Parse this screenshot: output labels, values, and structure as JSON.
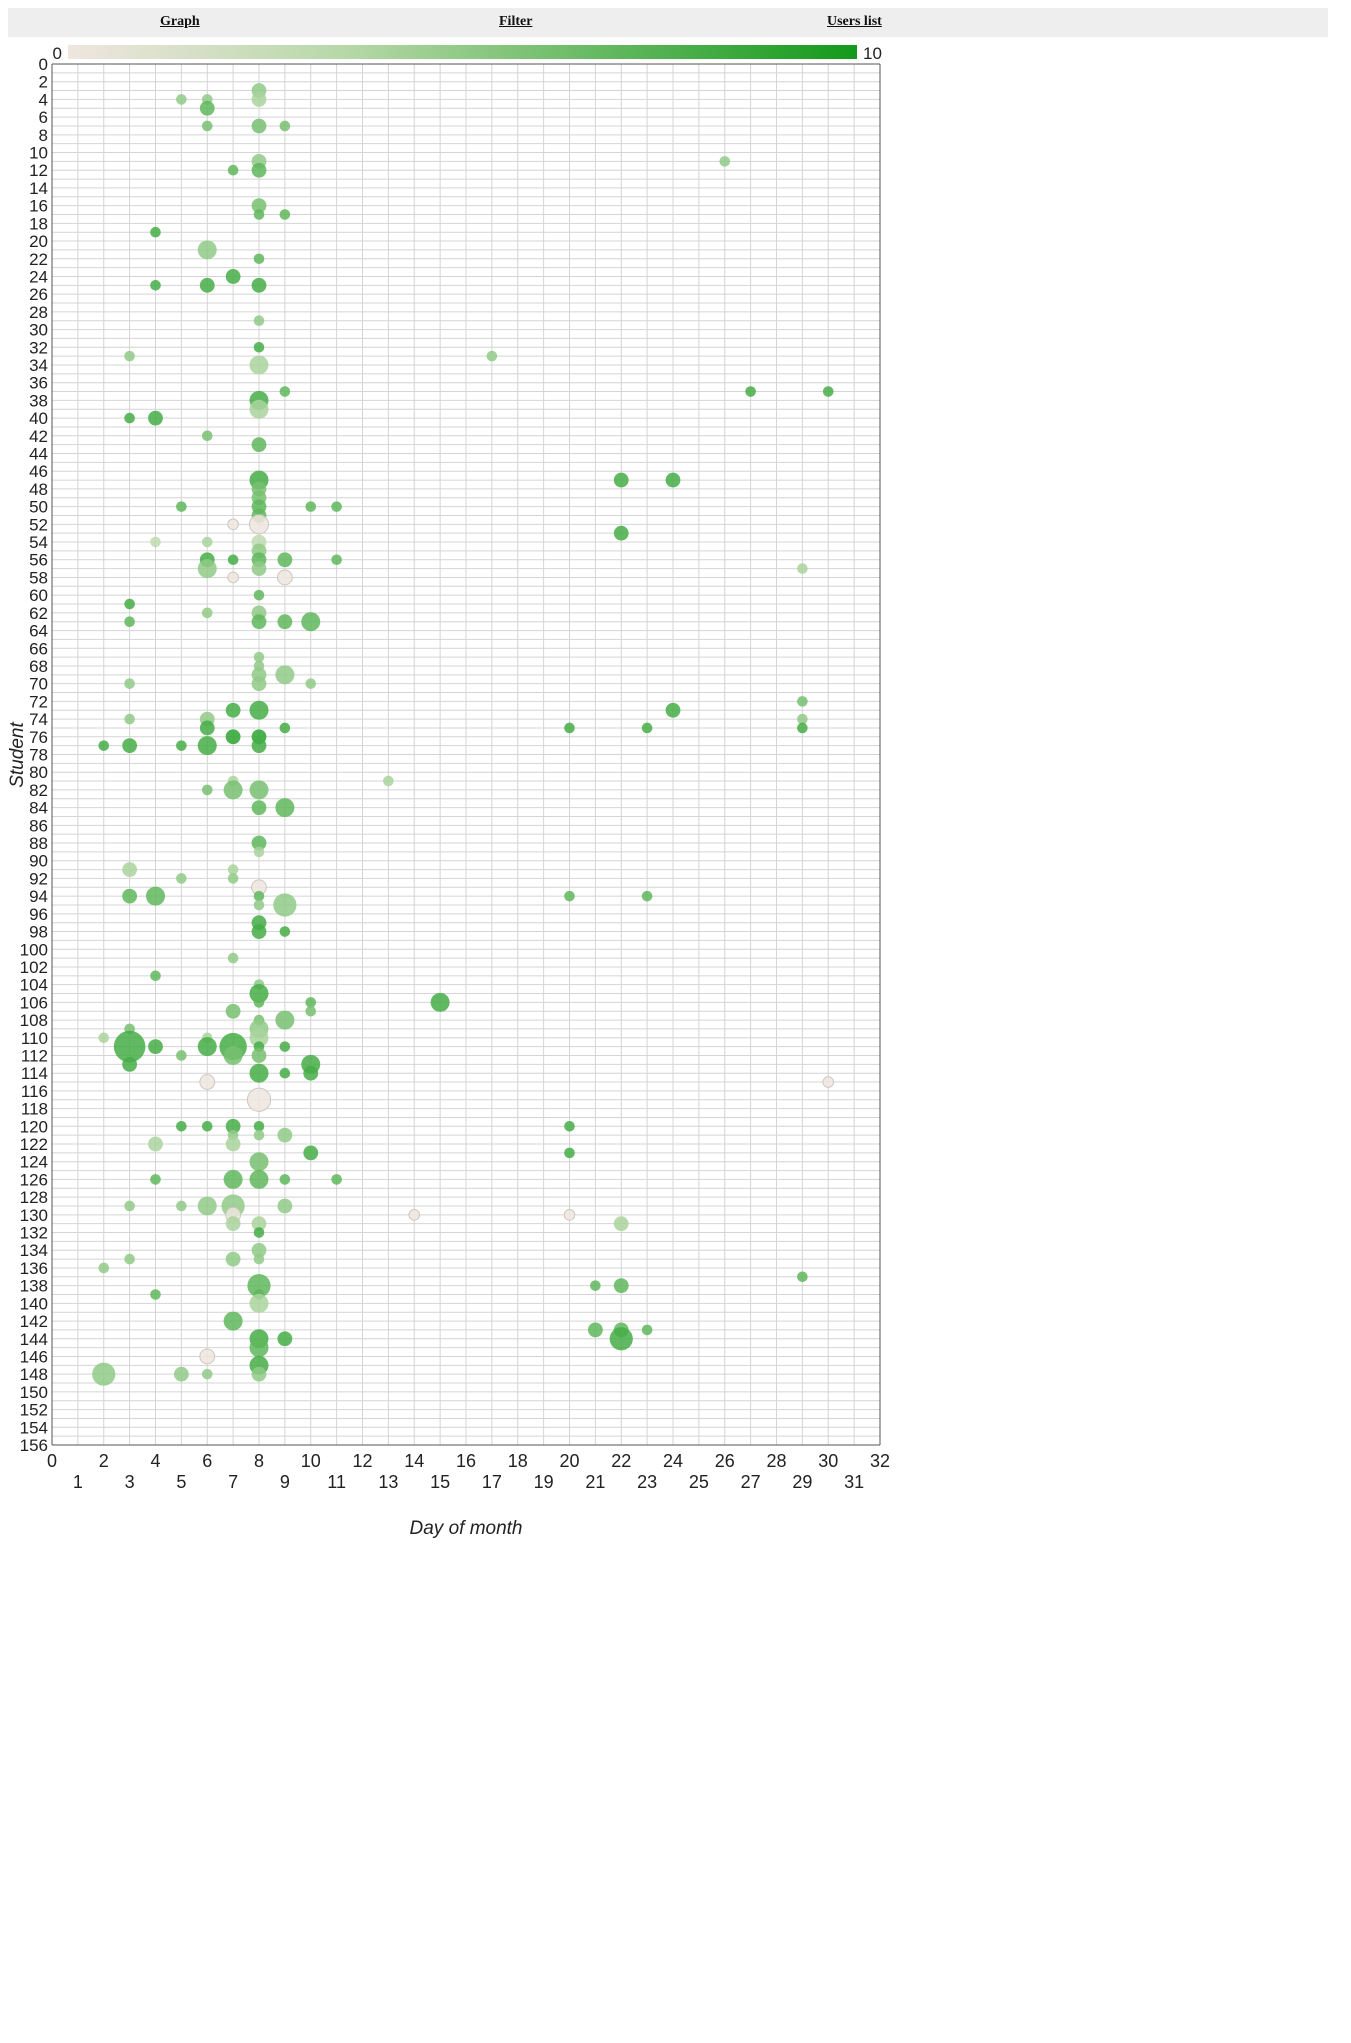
{
  "nav": {
    "graph_label": "Graph",
    "filter_label": "Filter",
    "users_label": "Users list"
  },
  "colors": {
    "low": "#efe6df",
    "mid": "#b7d8a8",
    "high": "#139a1a"
  },
  "chart_data": {
    "type": "scatter",
    "title": "",
    "xlabel": "Day of month",
    "ylabel": "Student",
    "xlim": [
      0,
      32
    ],
    "ylim": [
      0,
      156
    ],
    "x_ticks_even": [
      0,
      2,
      4,
      6,
      8,
      10,
      12,
      14,
      16,
      18,
      20,
      22,
      24,
      26,
      28,
      30,
      32
    ],
    "x_ticks_odd": [
      1,
      3,
      5,
      7,
      9,
      11,
      13,
      15,
      17,
      19,
      21,
      23,
      25,
      27,
      29,
      31
    ],
    "y_tick_step": 2,
    "grid": true,
    "color_scale": {
      "min": 0,
      "max": 10,
      "min_label": "0",
      "max_label": "10"
    },
    "point_fields": [
      "day",
      "student",
      "size",
      "color_value"
    ],
    "points": [
      [
        8,
        3,
        2,
        5
      ],
      [
        5,
        4,
        1,
        5
      ],
      [
        6,
        4,
        1,
        5
      ],
      [
        8,
        4,
        2,
        4
      ],
      [
        6,
        5,
        2,
        7
      ],
      [
        6,
        7,
        1,
        6
      ],
      [
        8,
        7,
        2,
        6
      ],
      [
        9,
        7,
        1,
        6
      ],
      [
        8,
        11,
        2,
        5
      ],
      [
        26,
        11,
        1,
        5
      ],
      [
        7,
        12,
        1,
        7
      ],
      [
        8,
        12,
        2,
        7
      ],
      [
        8,
        16,
        2,
        6
      ],
      [
        8,
        17,
        1,
        7
      ],
      [
        9,
        17,
        1,
        7
      ],
      [
        4,
        19,
        1,
        8
      ],
      [
        6,
        21,
        3,
        5
      ],
      [
        8,
        22,
        1,
        7
      ],
      [
        7,
        24,
        2,
        8
      ],
      [
        4,
        25,
        1,
        8
      ],
      [
        6,
        25,
        2,
        8
      ],
      [
        8,
        25,
        2,
        8
      ],
      [
        8,
        29,
        1,
        5
      ],
      [
        8,
        32,
        1,
        8
      ],
      [
        3,
        33,
        1,
        5
      ],
      [
        17,
        33,
        1,
        5
      ],
      [
        8,
        34,
        3,
        4
      ],
      [
        9,
        37,
        1,
        7
      ],
      [
        27,
        37,
        1,
        8
      ],
      [
        30,
        37,
        1,
        8
      ],
      [
        8,
        38,
        3,
        8
      ],
      [
        8,
        39,
        3,
        4
      ],
      [
        3,
        40,
        1,
        8
      ],
      [
        4,
        40,
        2,
        8
      ],
      [
        6,
        42,
        1,
        6
      ],
      [
        8,
        43,
        2,
        7
      ],
      [
        8,
        47,
        3,
        8
      ],
      [
        22,
        47,
        2,
        8
      ],
      [
        24,
        47,
        2,
        8
      ],
      [
        8,
        48,
        2,
        6
      ],
      [
        8,
        49,
        2,
        6
      ],
      [
        5,
        50,
        1,
        7
      ],
      [
        8,
        50,
        2,
        7
      ],
      [
        10,
        50,
        1,
        7
      ],
      [
        11,
        50,
        1,
        7
      ],
      [
        8,
        51,
        2,
        7
      ],
      [
        7,
        52,
        1,
        0
      ],
      [
        8,
        52,
        3,
        0
      ],
      [
        22,
        53,
        2,
        8
      ],
      [
        4,
        54,
        1,
        3
      ],
      [
        6,
        54,
        1,
        4
      ],
      [
        8,
        54,
        2,
        3
      ],
      [
        8,
        55,
        2,
        5
      ],
      [
        6,
        56,
        2,
        8
      ],
      [
        7,
        56,
        1,
        8
      ],
      [
        8,
        56,
        2,
        7
      ],
      [
        9,
        56,
        2,
        7
      ],
      [
        11,
        56,
        1,
        7
      ],
      [
        6,
        57,
        3,
        5
      ],
      [
        8,
        57,
        2,
        5
      ],
      [
        29,
        57,
        1,
        4
      ],
      [
        7,
        58,
        1,
        0
      ],
      [
        9,
        58,
        2,
        0
      ],
      [
        8,
        60,
        1,
        7
      ],
      [
        3,
        61,
        1,
        8
      ],
      [
        6,
        62,
        1,
        5
      ],
      [
        8,
        62,
        2,
        5
      ],
      [
        3,
        63,
        1,
        7
      ],
      [
        8,
        63,
        2,
        7
      ],
      [
        9,
        63,
        2,
        7
      ],
      [
        10,
        63,
        3,
        7
      ],
      [
        8,
        67,
        1,
        5
      ],
      [
        8,
        68,
        1,
        5
      ],
      [
        8,
        69,
        2,
        5
      ],
      [
        9,
        69,
        3,
        5
      ],
      [
        3,
        70,
        1,
        5
      ],
      [
        8,
        70,
        2,
        5
      ],
      [
        10,
        70,
        1,
        5
      ],
      [
        29,
        72,
        1,
        6
      ],
      [
        7,
        73,
        2,
        8
      ],
      [
        8,
        73,
        3,
        8
      ],
      [
        24,
        73,
        2,
        8
      ],
      [
        3,
        74,
        1,
        5
      ],
      [
        6,
        74,
        2,
        5
      ],
      [
        29,
        74,
        1,
        5
      ],
      [
        6,
        75,
        2,
        8
      ],
      [
        9,
        75,
        1,
        8
      ],
      [
        20,
        75,
        1,
        8
      ],
      [
        23,
        75,
        1,
        8
      ],
      [
        29,
        75,
        1,
        8
      ],
      [
        7,
        76,
        2,
        9
      ],
      [
        8,
        76,
        2,
        9
      ],
      [
        2,
        77,
        1,
        8
      ],
      [
        3,
        77,
        2,
        8
      ],
      [
        5,
        77,
        1,
        8
      ],
      [
        6,
        77,
        3,
        8
      ],
      [
        8,
        77,
        2,
        8
      ],
      [
        7,
        81,
        1,
        4
      ],
      [
        13,
        81,
        1,
        4
      ],
      [
        6,
        82,
        1,
        6
      ],
      [
        7,
        82,
        3,
        6
      ],
      [
        8,
        82,
        3,
        6
      ],
      [
        8,
        84,
        2,
        7
      ],
      [
        9,
        84,
        3,
        7
      ],
      [
        8,
        88,
        2,
        7
      ],
      [
        8,
        89,
        1,
        4
      ],
      [
        3,
        91,
        2,
        4
      ],
      [
        7,
        91,
        1,
        4
      ],
      [
        5,
        92,
        1,
        5
      ],
      [
        7,
        92,
        1,
        5
      ],
      [
        8,
        93,
        2,
        0
      ],
      [
        3,
        94,
        2,
        7
      ],
      [
        4,
        94,
        3,
        7
      ],
      [
        8,
        94,
        1,
        7
      ],
      [
        20,
        94,
        1,
        7
      ],
      [
        23,
        94,
        1,
        7
      ],
      [
        8,
        95,
        1,
        5
      ],
      [
        9,
        95,
        4,
        5
      ],
      [
        8,
        97,
        2,
        8
      ],
      [
        8,
        98,
        2,
        8
      ],
      [
        9,
        98,
        1,
        8
      ],
      [
        7,
        101,
        1,
        5
      ],
      [
        4,
        103,
        1,
        7
      ],
      [
        8,
        104,
        1,
        5
      ],
      [
        8,
        105,
        3,
        8
      ],
      [
        8,
        106,
        1,
        7
      ],
      [
        10,
        106,
        1,
        7
      ],
      [
        15,
        106,
        3,
        8
      ],
      [
        7,
        107,
        2,
        6
      ],
      [
        10,
        107,
        1,
        6
      ],
      [
        8,
        108,
        1,
        6
      ],
      [
        9,
        108,
        3,
        6
      ],
      [
        3,
        109,
        1,
        6
      ],
      [
        8,
        109,
        3,
        5
      ],
      [
        2,
        110,
        1,
        4
      ],
      [
        6,
        110,
        1,
        4
      ],
      [
        8,
        110,
        3,
        4
      ],
      [
        3,
        111,
        6,
        8
      ],
      [
        4,
        111,
        2,
        8
      ],
      [
        6,
        111,
        3,
        8
      ],
      [
        7,
        111,
        5,
        8
      ],
      [
        8,
        111,
        1,
        8
      ],
      [
        9,
        111,
        1,
        8
      ],
      [
        5,
        112,
        1,
        6
      ],
      [
        7,
        112,
        3,
        6
      ],
      [
        8,
        112,
        2,
        6
      ],
      [
        3,
        113,
        2,
        8
      ],
      [
        10,
        113,
        3,
        8
      ],
      [
        8,
        114,
        3,
        8
      ],
      [
        9,
        114,
        1,
        8
      ],
      [
        10,
        114,
        2,
        8
      ],
      [
        6,
        115,
        2,
        0
      ],
      [
        30,
        115,
        1,
        0
      ],
      [
        8,
        117,
        4,
        0
      ],
      [
        5,
        120,
        1,
        8
      ],
      [
        6,
        120,
        1,
        8
      ],
      [
        7,
        120,
        2,
        8
      ],
      [
        8,
        120,
        1,
        8
      ],
      [
        20,
        120,
        1,
        8
      ],
      [
        7,
        121,
        1,
        5
      ],
      [
        8,
        121,
        1,
        5
      ],
      [
        9,
        121,
        2,
        5
      ],
      [
        4,
        122,
        2,
        4
      ],
      [
        7,
        122,
        2,
        4
      ],
      [
        10,
        123,
        2,
        8
      ],
      [
        20,
        123,
        1,
        8
      ],
      [
        8,
        124,
        3,
        6
      ],
      [
        4,
        126,
        1,
        7
      ],
      [
        7,
        126,
        3,
        7
      ],
      [
        8,
        126,
        3,
        7
      ],
      [
        9,
        126,
        1,
        7
      ],
      [
        11,
        126,
        1,
        7
      ],
      [
        3,
        129,
        1,
        5
      ],
      [
        5,
        129,
        1,
        5
      ],
      [
        6,
        129,
        3,
        5
      ],
      [
        7,
        129,
        4,
        5
      ],
      [
        9,
        129,
        2,
        5
      ],
      [
        7,
        130,
        2,
        0
      ],
      [
        14,
        130,
        1,
        0
      ],
      [
        20,
        130,
        1,
        0
      ],
      [
        7,
        131,
        2,
        4
      ],
      [
        8,
        131,
        2,
        4
      ],
      [
        22,
        131,
        2,
        4
      ],
      [
        8,
        132,
        1,
        8
      ],
      [
        8,
        134,
        2,
        5
      ],
      [
        3,
        135,
        1,
        5
      ],
      [
        7,
        135,
        2,
        5
      ],
      [
        8,
        135,
        1,
        5
      ],
      [
        2,
        136,
        1,
        5
      ],
      [
        29,
        137,
        1,
        7
      ],
      [
        8,
        138,
        4,
        7
      ],
      [
        21,
        138,
        1,
        7
      ],
      [
        22,
        138,
        2,
        7
      ],
      [
        4,
        139,
        1,
        7
      ],
      [
        8,
        139,
        1,
        7
      ],
      [
        8,
        140,
        3,
        4
      ],
      [
        7,
        142,
        3,
        7
      ],
      [
        21,
        143,
        2,
        7
      ],
      [
        22,
        143,
        2,
        7
      ],
      [
        23,
        143,
        1,
        7
      ],
      [
        8,
        144,
        3,
        8
      ],
      [
        9,
        144,
        2,
        8
      ],
      [
        22,
        144,
        4,
        8
      ],
      [
        8,
        145,
        3,
        7
      ],
      [
        6,
        146,
        2,
        0
      ],
      [
        8,
        147,
        3,
        8
      ],
      [
        2,
        148,
        4,
        5
      ],
      [
        5,
        148,
        2,
        5
      ],
      [
        6,
        148,
        1,
        5
      ],
      [
        8,
        148,
        2,
        5
      ]
    ]
  }
}
